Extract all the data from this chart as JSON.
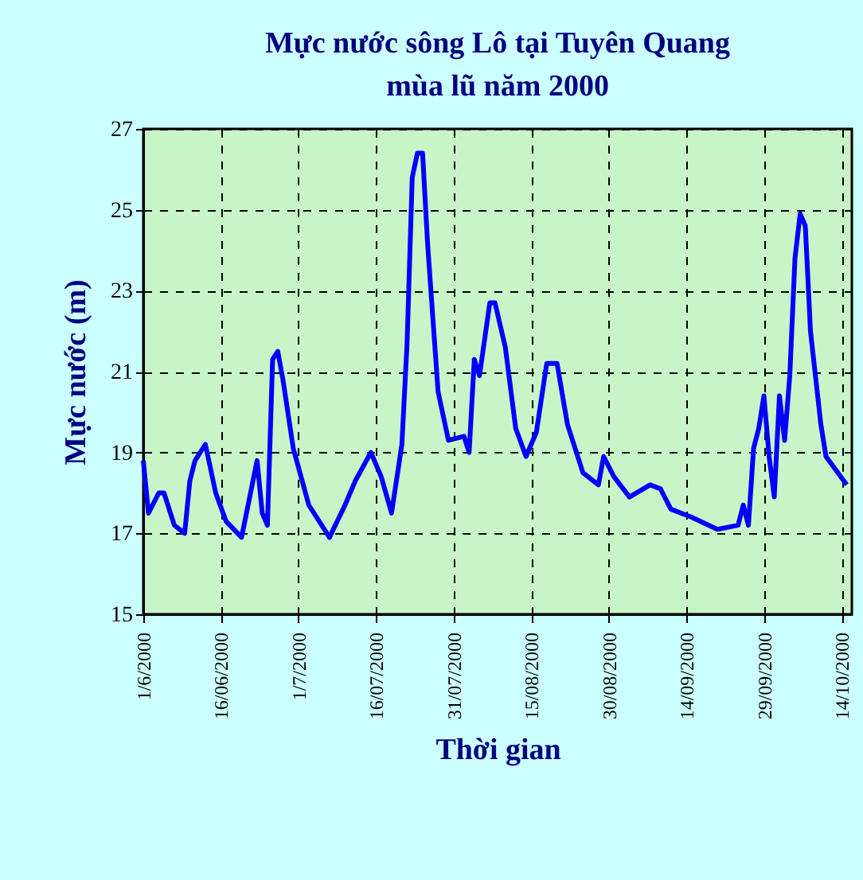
{
  "chart_data": {
    "type": "line",
    "title": "Mực nước sông Lô tại Tuyên Quang\nmùa lũ năm 2000",
    "xlabel": "Thời gian",
    "ylabel": "Mực nước (m)",
    "x": [
      "2000-06-01",
      "2000-06-02",
      "2000-06-04",
      "2000-06-05",
      "2000-06-07",
      "2000-06-09",
      "2000-06-10",
      "2000-06-11",
      "2000-06-13",
      "2000-06-15",
      "2000-06-17",
      "2000-06-20",
      "2000-06-23",
      "2000-06-24",
      "2000-06-25",
      "2000-06-26",
      "2000-06-27",
      "2000-06-28",
      "2000-06-30",
      "2000-07-03",
      "2000-07-07",
      "2000-07-10",
      "2000-07-12",
      "2000-07-15",
      "2000-07-17",
      "2000-07-19",
      "2000-07-21",
      "2000-07-22",
      "2000-07-23",
      "2000-07-24",
      "2000-07-25",
      "2000-07-26",
      "2000-07-28",
      "2000-07-30",
      "2000-08-02",
      "2000-08-03",
      "2000-08-04",
      "2000-08-05",
      "2000-08-07",
      "2000-08-08",
      "2000-08-10",
      "2000-08-12",
      "2000-08-14",
      "2000-08-16",
      "2000-08-18",
      "2000-08-20",
      "2000-08-22",
      "2000-08-25",
      "2000-08-28",
      "2000-08-29",
      "2000-08-31",
      "2000-09-03",
      "2000-09-07",
      "2000-09-09",
      "2000-09-11",
      "2000-09-15",
      "2000-09-20",
      "2000-09-24",
      "2000-09-25",
      "2000-09-26",
      "2000-09-27",
      "2000-09-28",
      "2000-09-29",
      "2000-09-30",
      "2000-10-01",
      "2000-10-02",
      "2000-10-03",
      "2000-10-04",
      "2000-10-05",
      "2000-10-06",
      "2000-10-07",
      "2000-10-08",
      "2000-10-10",
      "2000-10-11",
      "2000-10-15"
    ],
    "series": [
      {
        "color": "#0000ff",
        "values": [
          18.8,
          17.5,
          18.0,
          18.0,
          17.2,
          17.0,
          18.3,
          18.8,
          19.2,
          18.0,
          17.3,
          16.9,
          18.8,
          17.5,
          17.2,
          21.3,
          21.5,
          20.8,
          19.1,
          17.7,
          16.9,
          17.7,
          18.3,
          19.0,
          18.4,
          17.5,
          19.2,
          21.7,
          25.8,
          26.4,
          26.4,
          24.1,
          20.5,
          19.3,
          19.4,
          19.0,
          21.3,
          20.9,
          22.7,
          22.7,
          21.6,
          19.6,
          18.9,
          19.5,
          21.2,
          21.2,
          19.7,
          18.5,
          18.2,
          18.9,
          18.4,
          17.9,
          18.2,
          18.1,
          17.6,
          17.4,
          17.1,
          17.2,
          17.7,
          17.2,
          19.1,
          19.6,
          20.4,
          18.9,
          17.9,
          20.4,
          19.3,
          20.9,
          23.8,
          24.9,
          24.6,
          22.0,
          19.7,
          18.9,
          18.2
        ]
      }
    ],
    "xlim": [
      "2000-06-01",
      "2000-10-16"
    ],
    "xticks": [
      {
        "value": "2000-06-01",
        "label": "1/6/2000"
      },
      {
        "value": "2000-06-16",
        "label": "16/06/2000"
      },
      {
        "value": "2000-07-01",
        "label": "1/7/2000"
      },
      {
        "value": "2000-07-16",
        "label": "16/07/2000"
      },
      {
        "value": "2000-07-31",
        "label": "31/07/2000"
      },
      {
        "value": "2000-08-15",
        "label": "15/08/2000"
      },
      {
        "value": "2000-08-30",
        "label": "30/08/2000"
      },
      {
        "value": "2000-09-14",
        "label": "14/09/2000"
      },
      {
        "value": "2000-09-29",
        "label": "29/09/2000"
      },
      {
        "value": "2000-10-14",
        "label": "14/10/2000"
      }
    ],
    "ylim": [
      15,
      27
    ],
    "yticks": [
      15,
      17,
      19,
      21,
      23,
      25,
      27
    ],
    "grid": true
  }
}
